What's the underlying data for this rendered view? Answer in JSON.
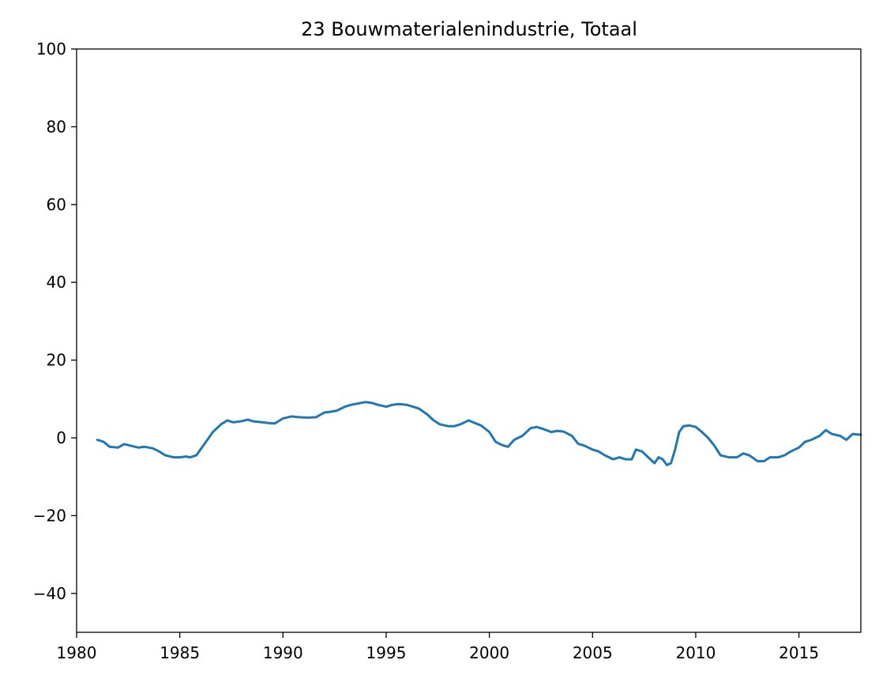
{
  "chart_data": {
    "type": "line",
    "title": "23 Bouwmaterialenindustrie, Totaal",
    "xlabel": "",
    "ylabel": "",
    "xlim": [
      1980,
      2018
    ],
    "ylim": [
      -50,
      100
    ],
    "x_ticks": [
      1980,
      1985,
      1990,
      1995,
      2000,
      2005,
      2010,
      2015
    ],
    "x_tick_labels": [
      "1980",
      "1985",
      "1990",
      "1995",
      "2000",
      "2005",
      "2010",
      "2015"
    ],
    "y_ticks": [
      -40,
      -20,
      0,
      20,
      40,
      60,
      80,
      100
    ],
    "y_tick_labels": [
      "−40",
      "−20",
      "0",
      "20",
      "40",
      "60",
      "80",
      "100"
    ],
    "grid": false,
    "legend": "none",
    "series": [
      {
        "color": "#1f77b4",
        "x": [
          1981.0,
          1981.3,
          1981.6,
          1982.0,
          1982.3,
          1982.6,
          1983.0,
          1983.3,
          1983.7,
          1984.0,
          1984.3,
          1984.7,
          1985.0,
          1985.3,
          1985.5,
          1985.8,
          1986.0,
          1986.3,
          1986.6,
          1987.0,
          1987.3,
          1987.6,
          1988.0,
          1988.3,
          1988.6,
          1989.0,
          1989.3,
          1989.6,
          1990.0,
          1990.4,
          1990.8,
          1991.2,
          1991.6,
          1992.0,
          1992.3,
          1992.6,
          1993.0,
          1993.3,
          1993.6,
          1994.0,
          1994.3,
          1994.6,
          1995.0,
          1995.3,
          1995.6,
          1996.0,
          1996.3,
          1996.6,
          1997.0,
          1997.3,
          1997.6,
          1998.0,
          1998.3,
          1998.6,
          1999.0,
          1999.3,
          1999.6,
          2000.0,
          2000.3,
          2000.6,
          2000.9,
          2001.2,
          2001.6,
          2002.0,
          2002.3,
          2002.6,
          2003.0,
          2003.3,
          2003.6,
          2004.0,
          2004.3,
          2004.6,
          2005.0,
          2005.3,
          2005.6,
          2006.0,
          2006.3,
          2006.6,
          2006.9,
          2007.1,
          2007.4,
          2007.7,
          2008.0,
          2008.2,
          2008.4,
          2008.6,
          2008.8,
          2009.0,
          2009.2,
          2009.4,
          2009.7,
          2010.0,
          2010.3,
          2010.6,
          2010.9,
          2011.2,
          2011.6,
          2012.0,
          2012.3,
          2012.6,
          2013.0,
          2013.3,
          2013.6,
          2014.0,
          2014.3,
          2014.6,
          2015.0,
          2015.3,
          2015.6,
          2016.0,
          2016.3,
          2016.6,
          2017.0,
          2017.3,
          2017.6,
          2018.0
        ],
        "y": [
          -0.5,
          -1.0,
          -2.3,
          -2.5,
          -1.6,
          -2.0,
          -2.5,
          -2.3,
          -2.7,
          -3.5,
          -4.5,
          -5.0,
          -5.0,
          -4.8,
          -5.0,
          -4.5,
          -3.0,
          -0.8,
          1.5,
          3.5,
          4.5,
          4.0,
          4.3,
          4.7,
          4.2,
          4.0,
          3.8,
          3.7,
          5.0,
          5.5,
          5.3,
          5.2,
          5.3,
          6.5,
          6.7,
          7.0,
          8.0,
          8.5,
          8.8,
          9.2,
          9.0,
          8.5,
          8.0,
          8.5,
          8.7,
          8.5,
          8.0,
          7.5,
          6.0,
          4.5,
          3.5,
          3.0,
          3.0,
          3.5,
          4.5,
          3.8,
          3.2,
          1.5,
          -1.0,
          -1.8,
          -2.3,
          -0.5,
          0.5,
          2.5,
          2.8,
          2.3,
          1.5,
          1.8,
          1.6,
          0.5,
          -1.5,
          -2.0,
          -3.0,
          -3.5,
          -4.5,
          -5.5,
          -5.0,
          -5.5,
          -5.5,
          -3.0,
          -3.5,
          -5.0,
          -6.5,
          -5.0,
          -5.5,
          -7.0,
          -6.5,
          -3.0,
          1.5,
          3.0,
          3.2,
          2.8,
          1.5,
          0.0,
          -2.0,
          -4.5,
          -5.0,
          -5.0,
          -4.0,
          -4.5,
          -6.0,
          -6.0,
          -5.0,
          -5.0,
          -4.5,
          -3.5,
          -2.5,
          -1.0,
          -0.5,
          0.5,
          2.0,
          1.0,
          0.5,
          -0.5,
          1.0,
          0.8
        ]
      }
    ]
  }
}
